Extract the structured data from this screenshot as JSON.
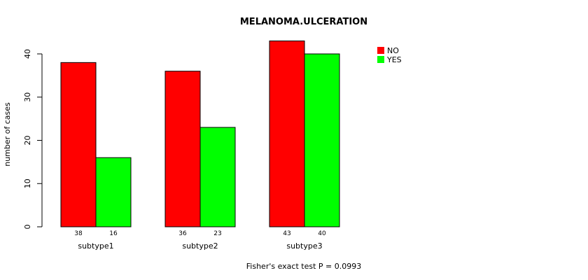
{
  "chart_data": {
    "type": "bar",
    "title": "MELANOMA.ULCERATION",
    "xlabel": "",
    "ylabel": "number of cases",
    "ylim": [
      0,
      40
    ],
    "yticks": [
      0,
      10,
      20,
      30,
      40
    ],
    "categories": [
      "subtype1",
      "subtype2",
      "subtype3"
    ],
    "series": [
      {
        "name": "NO",
        "color": "#ff0000",
        "values": [
          38,
          36,
          43
        ]
      },
      {
        "name": "YES",
        "color": "#00ff00",
        "values": [
          16,
          23,
          40
        ]
      }
    ],
    "legend_position": "top-right",
    "footnote": "Fisher's exact test P = 0.0993"
  }
}
